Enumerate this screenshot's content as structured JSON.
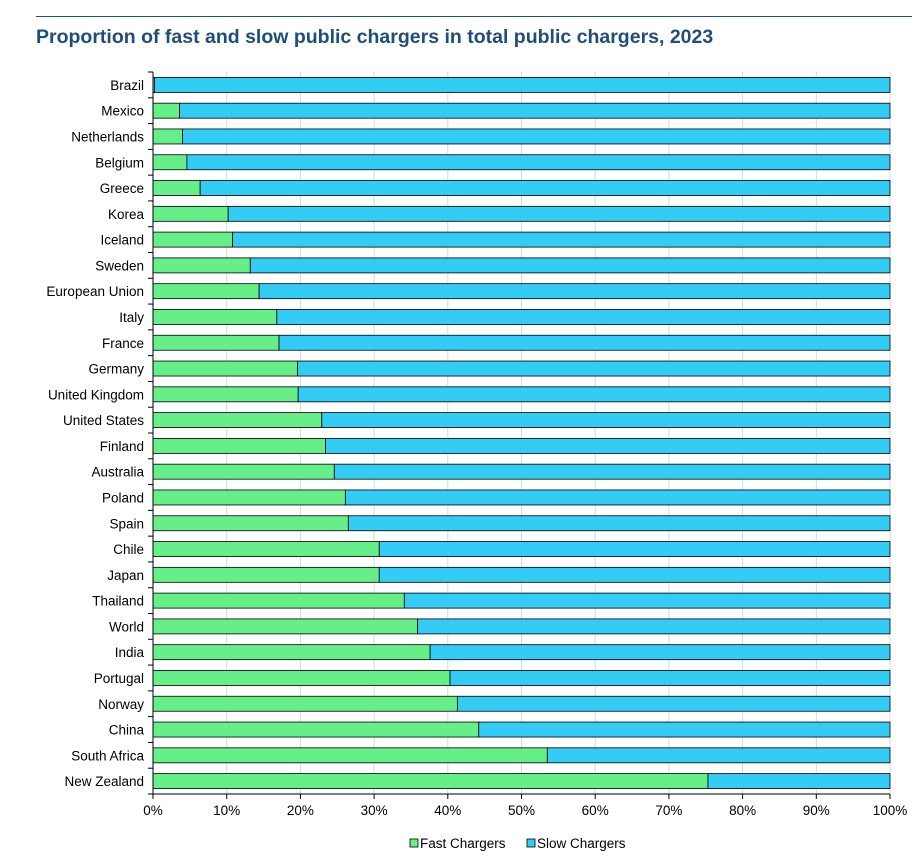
{
  "chart_data": {
    "type": "bar",
    "orientation": "horizontal",
    "stacked": true,
    "title": "Proportion of fast and slow public chargers in total public chargers, 2023",
    "categories": [
      "Brazil",
      "Mexico",
      "Netherlands",
      "Belgium",
      "Greece",
      "Korea",
      "Iceland",
      "Sweden",
      "European Union",
      "Italy",
      "France",
      "Germany",
      "United Kingdom",
      "United States",
      "Finland",
      "Australia",
      "Poland",
      "Spain",
      "Chile",
      "Japan",
      "Thailand",
      "World",
      "India",
      "Portugal",
      "Norway",
      "China",
      "South Africa",
      "New Zealand"
    ],
    "series": [
      {
        "name": "Fast Chargers",
        "color": "#66ee88",
        "values": [
          0.2,
          3.6,
          4,
          4.6,
          6.4,
          10.2,
          10.8,
          13.2,
          14.4,
          16.8,
          17.1,
          19.6,
          19.7,
          22.9,
          23.4,
          24.6,
          26.1,
          26.5,
          30.7,
          30.7,
          34.1,
          35.9,
          37.6,
          40.3,
          41.3,
          44.2,
          53.5,
          75.3
        ]
      },
      {
        "name": "Slow Chargers",
        "color": "#33ccf4",
        "values": [
          99.8,
          96.4,
          96,
          95.4,
          93.6,
          89.8,
          89.2,
          86.8,
          85.6,
          83.2,
          82.9,
          80.4,
          80.3,
          77.1,
          76.6,
          75.4,
          73.9,
          73.5,
          69.3,
          69.3,
          65.9,
          64.1,
          62.4,
          59.7,
          58.7,
          55.8,
          46.5,
          24.7
        ]
      }
    ],
    "xlim": [
      0,
      100
    ],
    "xticks": [
      "0%",
      "10%",
      "20%",
      "30%",
      "40%",
      "50%",
      "60%",
      "70%",
      "80%",
      "90%",
      "100%"
    ],
    "grid": true,
    "legend_position": "bottom"
  }
}
